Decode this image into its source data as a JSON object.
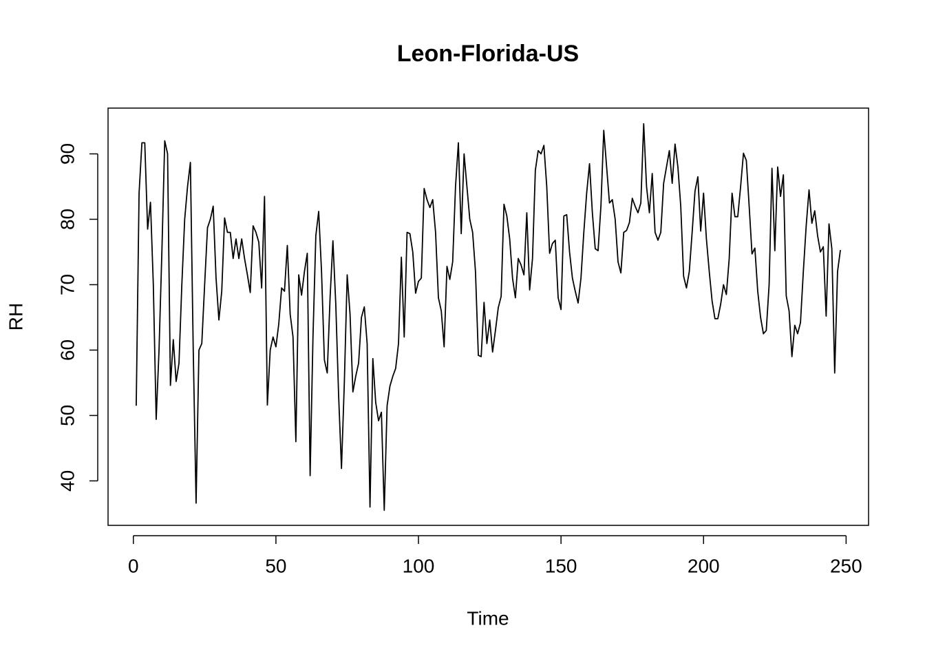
{
  "chart_data": {
    "type": "line",
    "title": "Leon-Florida-US",
    "x_label": "Time",
    "y_label": "RH",
    "color": "#000000",
    "x": [
      1,
      2,
      3,
      4,
      5,
      6,
      7,
      8,
      9,
      10,
      11,
      12,
      13,
      14,
      15,
      16,
      17,
      18,
      19,
      20,
      21,
      22,
      23,
      24,
      25,
      26,
      27,
      28,
      29,
      30,
      31,
      32,
      33,
      34,
      35,
      36,
      37,
      38,
      39,
      40,
      41,
      42,
      43,
      44,
      45,
      46,
      47,
      48,
      49,
      50,
      51,
      52,
      53,
      54,
      55,
      56,
      57,
      58,
      59,
      60,
      61,
      62,
      63,
      64,
      65,
      66,
      67,
      68,
      69,
      70,
      71,
      72,
      73,
      74,
      75,
      76,
      77,
      78,
      79,
      80,
      81,
      82,
      83,
      84,
      85,
      86,
      87,
      88,
      89,
      90,
      91,
      92,
      93,
      94,
      95,
      96,
      97,
      98,
      99,
      100,
      101,
      102,
      103,
      104,
      105,
      106,
      107,
      108,
      109,
      110,
      111,
      112,
      113,
      114,
      115,
      116,
      117,
      118,
      119,
      120,
      121,
      122,
      123,
      124,
      125,
      126,
      127,
      128,
      129,
      130,
      131,
      132,
      133,
      134,
      135,
      136,
      137,
      138,
      139,
      140,
      141,
      142,
      143,
      144,
      145,
      146,
      147,
      148,
      149,
      150,
      151,
      152,
      153,
      154,
      155,
      156,
      157,
      158,
      159,
      160,
      161,
      162,
      163,
      164,
      165,
      166,
      167,
      168,
      169,
      170,
      171,
      172,
      173,
      174,
      175,
      176,
      177,
      178,
      179,
      180,
      181,
      182,
      183,
      184,
      185,
      186,
      187,
      188,
      189,
      190,
      191,
      192,
      193,
      194,
      195,
      196,
      197,
      198,
      199,
      200,
      201,
      202,
      203,
      204,
      205,
      206,
      207,
      208,
      209,
      210,
      211,
      212,
      213,
      214,
      215,
      216,
      217,
      218,
      219,
      220,
      221,
      222,
      223,
      224,
      225,
      226,
      227,
      228,
      229,
      230,
      231,
      232,
      233,
      234,
      235,
      236,
      237,
      238,
      239,
      240,
      241,
      242,
      243,
      244,
      245,
      246,
      247,
      248
    ],
    "values": [
      51.5,
      84,
      91.7,
      91.7,
      78.5,
      82.6,
      70,
      49.4,
      60,
      75,
      92,
      90,
      54.6,
      61.6,
      55.2,
      58,
      70,
      80,
      85,
      88.7,
      60,
      36.6,
      60,
      61,
      70,
      78.7,
      80,
      82,
      71,
      64.6,
      69,
      80.2,
      78,
      78,
      74,
      77,
      74,
      77,
      74,
      71.5,
      68.8,
      79,
      78,
      76.5,
      69.5,
      83.5,
      51.6,
      60,
      62,
      60.5,
      64,
      69.5,
      69,
      76,
      65.5,
      62,
      46,
      71.5,
      68.4,
      72,
      74.8,
      40.8,
      62,
      77.5,
      81.2,
      72,
      58.5,
      56.5,
      68,
      76.7,
      67,
      53,
      41.9,
      55,
      71.5,
      65.5,
      53.6,
      56,
      58,
      65,
      66.6,
      61,
      36,
      58.7,
      52,
      49.2,
      50.5,
      35.5,
      51.5,
      54.5,
      56,
      57.2,
      61,
      74.2,
      62,
      78,
      77.8,
      75,
      68.7,
      70.5,
      71,
      84.7,
      83,
      81.8,
      83,
      78,
      68,
      66,
      60.5,
      72.8,
      70.8,
      73.5,
      85,
      91.7,
      77.8,
      90,
      85,
      80,
      78,
      72,
      59.2,
      59,
      67.3,
      61,
      64.6,
      59.7,
      63,
      66.5,
      68.2,
      82.3,
      80.5,
      77,
      71,
      68,
      74,
      73,
      71.5,
      81,
      69.2,
      74,
      87.5,
      90.5,
      90,
      91.3,
      85,
      74.8,
      76.3,
      76.8,
      68,
      66.2,
      80.5,
      80.7,
      75,
      71,
      69,
      67.2,
      71,
      78,
      84,
      88.5,
      81,
      75.5,
      75.2,
      82,
      93.6,
      88,
      82.5,
      83,
      80,
      73.5,
      71.8,
      78,
      78.3,
      79.5,
      83.2,
      82,
      81,
      82.5,
      94.6,
      85,
      81,
      87,
      78,
      76.8,
      78,
      85.5,
      88,
      90.5,
      85.5,
      91.5,
      88,
      82,
      71.3,
      69.5,
      72,
      78,
      84.3,
      86.5,
      78.2,
      84,
      77,
      72,
      67.5,
      64.8,
      64.8,
      67,
      70,
      68.5,
      74,
      84,
      80.4,
      80.4,
      85,
      90.1,
      89,
      82,
      74.7,
      75.6,
      69,
      65,
      62.5,
      63,
      70,
      87.8,
      75.2,
      88,
      83.5,
      86.8,
      68.3,
      66,
      59,
      63.8,
      62.5,
      64.2,
      72,
      79,
      84.5,
      79.4,
      81.3,
      77.5,
      75,
      75.8,
      65.2,
      79.3,
      75.5,
      56.5,
      72,
      75.3
    ],
    "xlim": [
      -8.88,
      257.88
    ],
    "ylim": [
      33.2,
      97.0
    ],
    "xticks": [
      0,
      50,
      100,
      150,
      200,
      250
    ],
    "yticks": [
      40,
      50,
      60,
      70,
      80,
      90
    ]
  }
}
